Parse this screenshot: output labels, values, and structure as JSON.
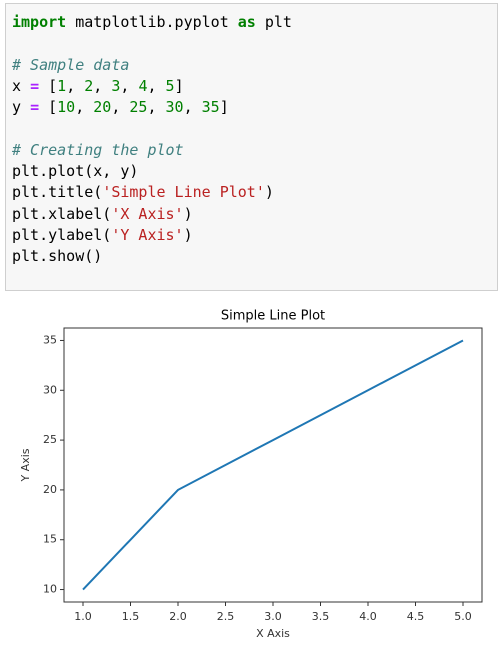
{
  "code": {
    "blocks": [
      {
        "lines": [
          {
            "tokens": [
              {
                "text": "import",
                "kind": "kw"
              },
              {
                "text": " matplotlib.pyplot "
              },
              {
                "text": "as",
                "kind": "kw"
              },
              {
                "text": " plt"
              }
            ]
          }
        ]
      },
      {
        "lines": [
          {
            "tokens": [
              {
                "text": "# Sample data",
                "kind": "com"
              }
            ]
          },
          {
            "tokens": [
              {
                "text": "x "
              },
              {
                "text": "=",
                "kind": "op"
              },
              {
                "text": " ["
              },
              {
                "text": "1",
                "kind": "num"
              },
              {
                "text": ", "
              },
              {
                "text": "2",
                "kind": "num"
              },
              {
                "text": ", "
              },
              {
                "text": "3",
                "kind": "num"
              },
              {
                "text": ", "
              },
              {
                "text": "4",
                "kind": "num"
              },
              {
                "text": ", "
              },
              {
                "text": "5",
                "kind": "num"
              },
              {
                "text": "]"
              }
            ]
          },
          {
            "tokens": [
              {
                "text": "y "
              },
              {
                "text": "=",
                "kind": "op"
              },
              {
                "text": " ["
              },
              {
                "text": "10",
                "kind": "num"
              },
              {
                "text": ", "
              },
              {
                "text": "20",
                "kind": "num"
              },
              {
                "text": ", "
              },
              {
                "text": "25",
                "kind": "num"
              },
              {
                "text": ", "
              },
              {
                "text": "30",
                "kind": "num"
              },
              {
                "text": ", "
              },
              {
                "text": "35",
                "kind": "num"
              },
              {
                "text": "]"
              }
            ]
          }
        ]
      },
      {
        "lines": [
          {
            "tokens": [
              {
                "text": "# Creating the plot",
                "kind": "com"
              }
            ]
          },
          {
            "tokens": [
              {
                "text": "plt.plot(x, y)"
              }
            ]
          },
          {
            "tokens": [
              {
                "text": "plt.title("
              },
              {
                "text": "'Simple Line Plot'",
                "kind": "str"
              },
              {
                "text": ")"
              }
            ]
          },
          {
            "tokens": [
              {
                "text": "plt.xlabel("
              },
              {
                "text": "'X Axis'",
                "kind": "str"
              },
              {
                "text": ")"
              }
            ]
          },
          {
            "tokens": [
              {
                "text": "plt.ylabel("
              },
              {
                "text": "'Y Axis'",
                "kind": "str"
              },
              {
                "text": ")"
              }
            ]
          },
          {
            "tokens": [
              {
                "text": "plt.show()"
              }
            ]
          }
        ]
      }
    ]
  },
  "chart_data": {
    "type": "line",
    "title": "Simple Line Plot",
    "x_label": "X Axis",
    "y_label": "Y Axis",
    "x": [
      1,
      2,
      3,
      4,
      5
    ],
    "series": [
      {
        "values": [
          10,
          20,
          25,
          30,
          35
        ],
        "color": "#1f77b4"
      }
    ],
    "xlim": [
      0.8,
      5.2
    ],
    "ylim": [
      8.75,
      36.25
    ],
    "xticks": [
      {
        "value": 1,
        "label": "1.0"
      },
      1.5,
      {
        "value": 2,
        "label": "2.0"
      },
      2.5,
      {
        "value": 3,
        "label": "3.0"
      },
      3.5,
      {
        "value": 4,
        "label": "4.0"
      },
      4.5,
      {
        "value": 5,
        "label": "5.0"
      }
    ],
    "yticks": [
      10,
      15,
      20,
      25,
      30,
      35
    ],
    "grid": false
  }
}
